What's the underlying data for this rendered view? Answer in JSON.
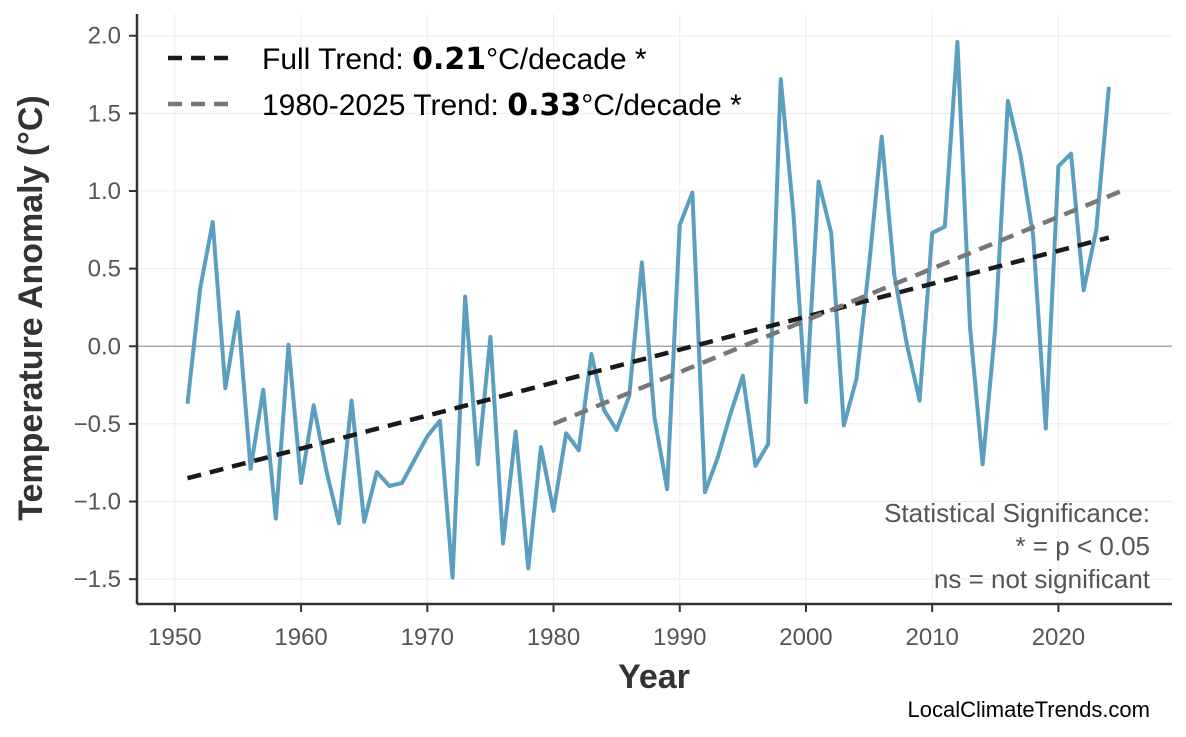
{
  "chart_data": {
    "type": "line",
    "xlabel": "Year",
    "ylabel": "Temperature Anomaly (°C)",
    "xlim": [
      1947,
      2029
    ],
    "ylim": [
      -1.66,
      2.14
    ],
    "xticks": [
      1950,
      1960,
      1970,
      1980,
      1990,
      2000,
      2010,
      2020
    ],
    "yticks": [
      -1.5,
      -1.0,
      -0.5,
      0.0,
      0.5,
      1.0,
      1.5,
      2.0
    ],
    "ytick_labels": [
      "−1.5",
      "−1.0",
      "−0.5",
      "0.0",
      "0.5",
      "1.0",
      "1.5",
      "2.0"
    ],
    "grid": true,
    "zero_line": true,
    "legend_position": "top-left",
    "series": [
      {
        "color": "#5a9fbf",
        "x": [
          1951,
          1952,
          1953,
          1954,
          1955,
          1956,
          1957,
          1958,
          1959,
          1960,
          1961,
          1962,
          1963,
          1964,
          1965,
          1966,
          1967,
          1968,
          1969,
          1970,
          1971,
          1972,
          1973,
          1974,
          1975,
          1976,
          1977,
          1978,
          1979,
          1980,
          1981,
          1982,
          1983,
          1984,
          1985,
          1986,
          1987,
          1988,
          1989,
          1990,
          1991,
          1992,
          1993,
          1994,
          1995,
          1996,
          1997,
          1998,
          1999,
          2000,
          2001,
          2002,
          2003,
          2004,
          2005,
          2006,
          2007,
          2008,
          2009,
          2010,
          2011,
          2012,
          2013,
          2014,
          2015,
          2016,
          2017,
          2018,
          2019,
          2020,
          2021,
          2022,
          2023,
          2024
        ],
        "y": [
          -0.37,
          0.37,
          0.8,
          -0.27,
          0.22,
          -0.79,
          -0.28,
          -1.11,
          0.01,
          -0.88,
          -0.38,
          -0.8,
          -1.14,
          -0.35,
          -1.13,
          -0.81,
          -0.9,
          -0.88,
          -0.73,
          -0.58,
          -0.48,
          -1.49,
          0.32,
          -0.76,
          0.06,
          -1.27,
          -0.55,
          -1.43,
          -0.65,
          -1.06,
          -0.56,
          -0.67,
          -0.05,
          -0.41,
          -0.54,
          -0.32,
          0.54,
          -0.46,
          -0.92,
          0.78,
          0.99,
          -0.94,
          -0.72,
          -0.44,
          -0.19,
          -0.77,
          -0.63,
          1.72,
          0.86,
          -0.36,
          1.06,
          0.73,
          -0.51,
          -0.21,
          0.52,
          1.35,
          0.46,
          0.01,
          -0.35,
          0.73,
          0.77,
          1.96,
          0.12,
          -0.76,
          0.12,
          1.58,
          1.23,
          0.71,
          -0.53,
          1.16,
          1.24,
          0.36,
          0.75,
          1.67
        ]
      },
      {
        "name": "Full Trend:",
        "rate": "0.21",
        "unit": "°C/decade *",
        "color": "#1a1a1a",
        "x": [
          1951,
          2024
        ],
        "y": [
          -0.85,
          0.7
        ]
      },
      {
        "name": "1980-2025 Trend:",
        "rate": "0.33",
        "unit": "°C/decade *",
        "color": "#777777",
        "x": [
          1980,
          2025
        ],
        "y": [
          -0.5,
          1.0
        ]
      }
    ],
    "annotations": [
      "Statistical Significance:",
      "* = p < 0.05",
      "ns = not significant"
    ],
    "credit": "LocalClimateTrends.com"
  }
}
